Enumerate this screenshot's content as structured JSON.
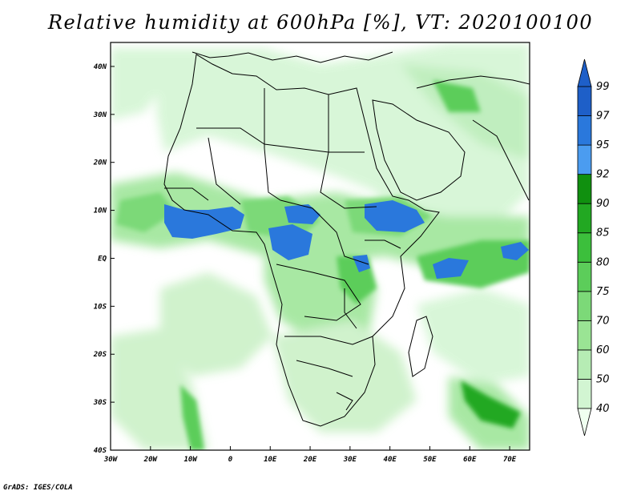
{
  "title": "Relative humidity at 600hPa [%], VT: 2020100100",
  "credit": "GrADS: IGES/COLA",
  "map": {
    "lon_range": [
      -30,
      75
    ],
    "lat_range": [
      -40,
      45
    ],
    "x_ticks": [
      "30W",
      "20W",
      "10W",
      "0",
      "10E",
      "20E",
      "30E",
      "40E",
      "50E",
      "60E",
      "70E"
    ],
    "x_tick_values": [
      -30,
      -20,
      -10,
      0,
      10,
      20,
      30,
      40,
      50,
      60,
      70
    ],
    "y_ticks": [
      "40N",
      "30N",
      "20N",
      "10N",
      "EQ",
      "10S",
      "20S",
      "30S",
      "40S"
    ],
    "y_tick_values": [
      40,
      30,
      20,
      10,
      0,
      -10,
      -20,
      -30,
      -40
    ]
  },
  "colorbar": {
    "levels": [
      "40",
      "50",
      "60",
      "70",
      "75",
      "80",
      "85",
      "90",
      "92",
      "95",
      "97",
      "99"
    ],
    "colors": [
      "#f0fff0",
      "#d2f5d2",
      "#b6ecb4",
      "#9ae494",
      "#7cd978",
      "#5ccd5a",
      "#3cbf3c",
      "#22a822",
      "#10900f",
      "#4b9cf0",
      "#2a78dc",
      "#1e5fc8"
    ]
  },
  "colors": {
    "ocean_bg": "#ffffff",
    "humid_light": "#c8f0c4",
    "humid_mid": "#7cd978",
    "humid_dark": "#22a822",
    "saturated": "#2a78dc",
    "coastline": "#000000"
  }
}
